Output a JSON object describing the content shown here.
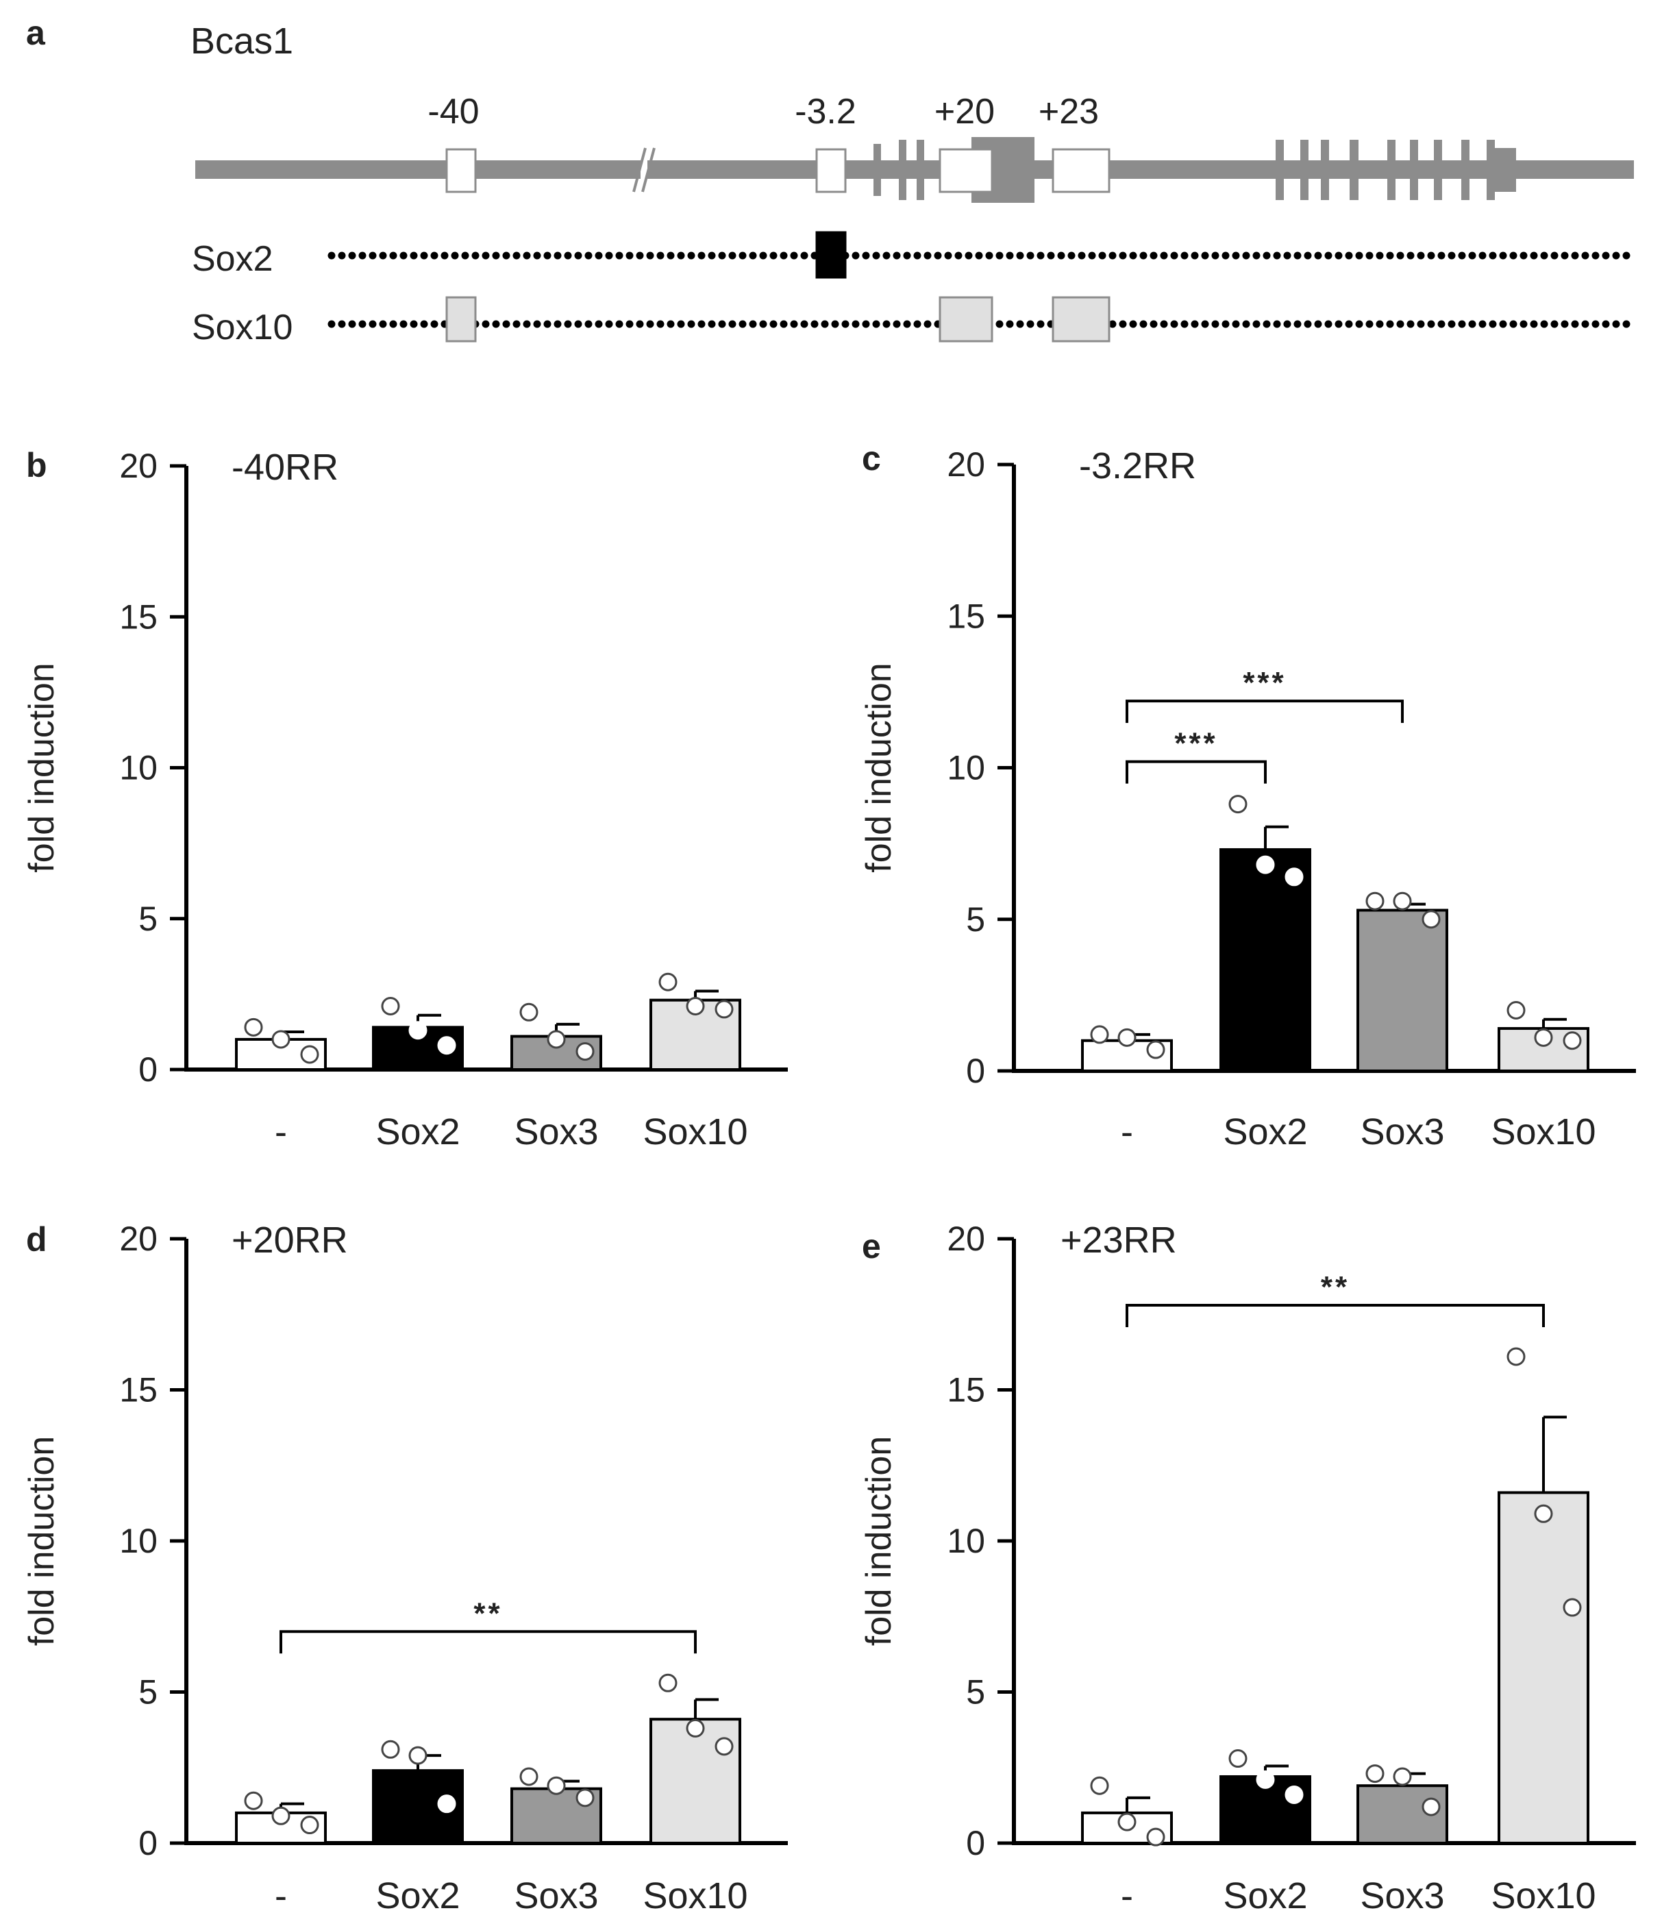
{
  "colors": {
    "axis": "#000000",
    "gene": "#8c8c8c",
    "region_white": "#ffffff",
    "region_black": "#000000",
    "region_light": "#e0e0e0",
    "bar_none": "#ffffff",
    "bar_sox2": "#000000",
    "bar_sox3": "#999999",
    "bar_sox10": "#e3e3e3"
  },
  "panel_a": {
    "letter": "a",
    "gene": "Bcas1",
    "regions": [
      "-40",
      "-3.2",
      "+20",
      "+23"
    ],
    "tracks": [
      {
        "name": "Sox2",
        "bound_regions": [
          "-3.2"
        ],
        "fill": "black"
      },
      {
        "name": "Sox10",
        "bound_regions": [
          "-40",
          "+20",
          "+23"
        ],
        "fill": "light"
      }
    ]
  },
  "chart_data": [
    {
      "panel": "b",
      "type": "bar",
      "title": "-40RR",
      "xlabel": "",
      "ylabel": "fold induction",
      "ylim": [
        0,
        20
      ],
      "yticks": [
        0,
        5,
        10,
        15,
        20
      ],
      "categories": [
        "-",
        "Sox2",
        "Sox3",
        "Sox10"
      ],
      "values": [
        1.0,
        1.4,
        1.1,
        2.3
      ],
      "errors": [
        0.25,
        0.4,
        0.4,
        0.3
      ],
      "points": [
        [
          1.4,
          1.0,
          0.5
        ],
        [
          2.1,
          1.3,
          0.8
        ],
        [
          1.9,
          1.0,
          0.6
        ],
        [
          2.9,
          2.1,
          2.0
        ]
      ],
      "significance": []
    },
    {
      "panel": "c",
      "type": "bar",
      "title": "-3.2RR",
      "xlabel": "",
      "ylabel": "fold induction",
      "ylim": [
        0,
        20
      ],
      "yticks": [
        0,
        5,
        10,
        15,
        20
      ],
      "categories": [
        "-",
        "Sox2",
        "Sox3",
        "Sox10"
      ],
      "values": [
        1.0,
        7.3,
        5.3,
        1.4
      ],
      "errors": [
        0.2,
        0.75,
        0.2,
        0.3
      ],
      "points": [
        [
          1.2,
          1.1,
          0.7
        ],
        [
          8.8,
          6.8,
          6.4
        ],
        [
          5.6,
          5.6,
          5.0
        ],
        [
          2.0,
          1.1,
          1.0
        ]
      ],
      "significance": [
        {
          "from": 0,
          "to": 1,
          "y": 10.2,
          "label": "***"
        },
        {
          "from": 0,
          "to": 2,
          "y": 12.2,
          "label": "***"
        }
      ]
    },
    {
      "panel": "d",
      "type": "bar",
      "title": "+20RR",
      "xlabel": "",
      "ylabel": "fold induction",
      "ylim": [
        0,
        20
      ],
      "yticks": [
        0,
        5,
        10,
        15,
        20
      ],
      "categories": [
        "-",
        "Sox2",
        "Sox3",
        "Sox10"
      ],
      "values": [
        1.0,
        2.4,
        1.8,
        4.1
      ],
      "errors": [
        0.3,
        0.5,
        0.25,
        0.65
      ],
      "points": [
        [
          1.4,
          0.9,
          0.6
        ],
        [
          3.1,
          2.9,
          1.3
        ],
        [
          2.2,
          1.9,
          1.5
        ],
        [
          5.3,
          3.8,
          3.2
        ]
      ],
      "significance": [
        {
          "from": 0,
          "to": 3,
          "y": 7.0,
          "label": "**"
        }
      ]
    },
    {
      "panel": "e",
      "type": "bar",
      "title": "+23RR",
      "xlabel": "",
      "ylabel": "fold induction",
      "ylim": [
        0,
        20
      ],
      "yticks": [
        0,
        5,
        10,
        15,
        20
      ],
      "categories": [
        "-",
        "Sox2",
        "Sox3",
        "Sox10"
      ],
      "values": [
        1.0,
        2.2,
        1.9,
        11.6
      ],
      "errors": [
        0.5,
        0.35,
        0.4,
        2.5
      ],
      "points": [
        [
          1.9,
          0.7,
          0.2
        ],
        [
          2.8,
          2.1,
          1.6
        ],
        [
          2.3,
          2.2,
          1.2
        ],
        [
          16.1,
          10.9,
          7.8
        ]
      ],
      "significance": [
        {
          "from": 0,
          "to": 3,
          "y": 17.8,
          "label": "**"
        }
      ]
    }
  ]
}
